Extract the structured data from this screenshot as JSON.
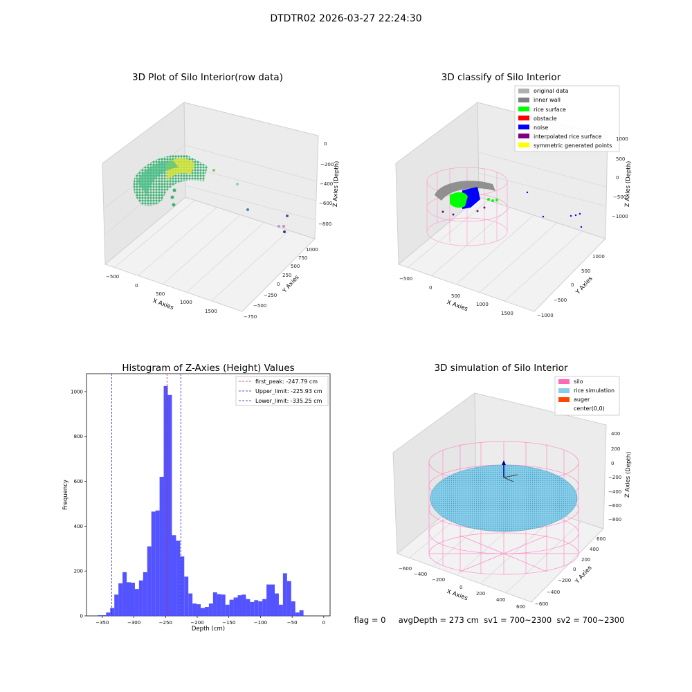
{
  "suptitle": "DTDTR02 2026-03-27 22:24:30",
  "footer_text": "flag = 0     avgDepth = 273 cm  sv1 = 700~2300  sv2 = 700~2300",
  "colors": {
    "hist_bar": "#4a4aff",
    "peak_line": "#d62728",
    "limit_line": "#1f1fcc",
    "silo_pink": "#ff69b4",
    "rice_blue": "#87ceeb",
    "auger": "#ff4500",
    "noise": "#0000ff",
    "rice_green": "#00ff00",
    "inner_wall": "#808080",
    "original": "#b0b0b0",
    "interp": "#800080",
    "symmetric": "#ffff00"
  },
  "chart_data": [
    {
      "type": "scatter3d",
      "title": "3D Plot of Silo Interior(row data)",
      "xlabel": "X Axies",
      "ylabel": "Y Axies",
      "zlabel": "Z Axies (Depth)",
      "x_ticks": [
        "−500",
        "0",
        "500",
        "1000",
        "1500"
      ],
      "y_ticks": [
        "−750",
        "−500",
        "−250",
        "0",
        "250",
        "500",
        "750",
        "1000"
      ],
      "z_ticks": [
        "0",
        "−200",
        "−400",
        "−600",
        "−800"
      ]
    },
    {
      "type": "scatter3d",
      "title": "3D classify of Silo Interior",
      "xlabel": "X Axies",
      "ylabel": "Y Axies",
      "zlabel": "Z Axies (Depth)",
      "x_ticks": [
        "−500",
        "0",
        "500",
        "1000",
        "1500"
      ],
      "y_ticks": [
        "−1000",
        "−500",
        "0",
        "500",
        "1000"
      ],
      "z_ticks": [
        "1000",
        "500",
        "0",
        "−500",
        "−1000"
      ],
      "legend": [
        {
          "label": "original data",
          "color": "#b0b0b0"
        },
        {
          "label": "inner wall",
          "color": "#808080"
        },
        {
          "label": "rice surface",
          "color": "#00ff00"
        },
        {
          "label": "obstacle",
          "color": "#ff0000"
        },
        {
          "label": "noise",
          "color": "#0000ff"
        },
        {
          "label": "interpolated rice surface",
          "color": "#800080"
        },
        {
          "label": "symmetric generated points",
          "color": "#ffff00"
        }
      ],
      "legend_position": "top-right"
    },
    {
      "type": "bar",
      "title": "Histogram of Z-Axies (Height) Values",
      "xlabel": "Depth (cm)",
      "ylabel": "Frequency",
      "xlim": [
        -375,
        10
      ],
      "ylim": [
        0,
        1080
      ],
      "bin_width": 6.5,
      "bin_start": -357,
      "values": [
        3,
        3,
        15,
        35,
        95,
        145,
        195,
        150,
        148,
        120,
        158,
        195,
        310,
        465,
        470,
        620,
        1025,
        985,
        360,
        335,
        265,
        175,
        100,
        55,
        52,
        35,
        40,
        55,
        105,
        97,
        95,
        50,
        72,
        82,
        92,
        95,
        75,
        62,
        70,
        65,
        75,
        140,
        140,
        100,
        50,
        190,
        155,
        65,
        15,
        25
      ],
      "x_ticks": [
        -350,
        -300,
        -250,
        -200,
        -150,
        -100,
        -50,
        0
      ],
      "x_tick_labels": [
        "−350",
        "−300",
        "−250",
        "−200",
        "−150",
        "−100",
        "−50",
        "0"
      ],
      "y_ticks": [
        0,
        200,
        400,
        600,
        800,
        1000
      ],
      "y_tick_labels": [
        "0",
        "200",
        "400",
        "600",
        "800",
        "1000"
      ],
      "vlines": [
        {
          "label": "first_peak: -247.79 cm",
          "x": -247.79,
          "color": "#d62728"
        },
        {
          "label": "Upper_limit: -225.93 cm",
          "x": -225.93,
          "color": "#1f1fcc"
        },
        {
          "label": "Lower_limit: -335.25 cm",
          "x": -335.25,
          "color": "#1f1fcc"
        }
      ],
      "legend_position": "top-right"
    },
    {
      "type": "surface3d",
      "title": "3D simulation of Silo Interior",
      "xlabel": "X Axies",
      "ylabel": "Y Axies",
      "zlabel": "Z Axies (Depth)",
      "x_ticks": [
        "−600",
        "−400",
        "−200",
        "0",
        "200",
        "400",
        "600"
      ],
      "y_ticks": [
        "−600",
        "−400",
        "−200",
        "0",
        "200",
        "400",
        "600"
      ],
      "z_ticks": [
        "400",
        "200",
        "0",
        "−200",
        "−400",
        "−600",
        "−800"
      ],
      "legend": [
        {
          "label": "silo",
          "color": "#ff69b4"
        },
        {
          "label": "rice simulation",
          "color": "#87ceeb"
        },
        {
          "label": "auger",
          "color": "#ff4500"
        },
        {
          "label": "center(0,0)",
          "color": ""
        }
      ],
      "legend_position": "top-right"
    }
  ]
}
